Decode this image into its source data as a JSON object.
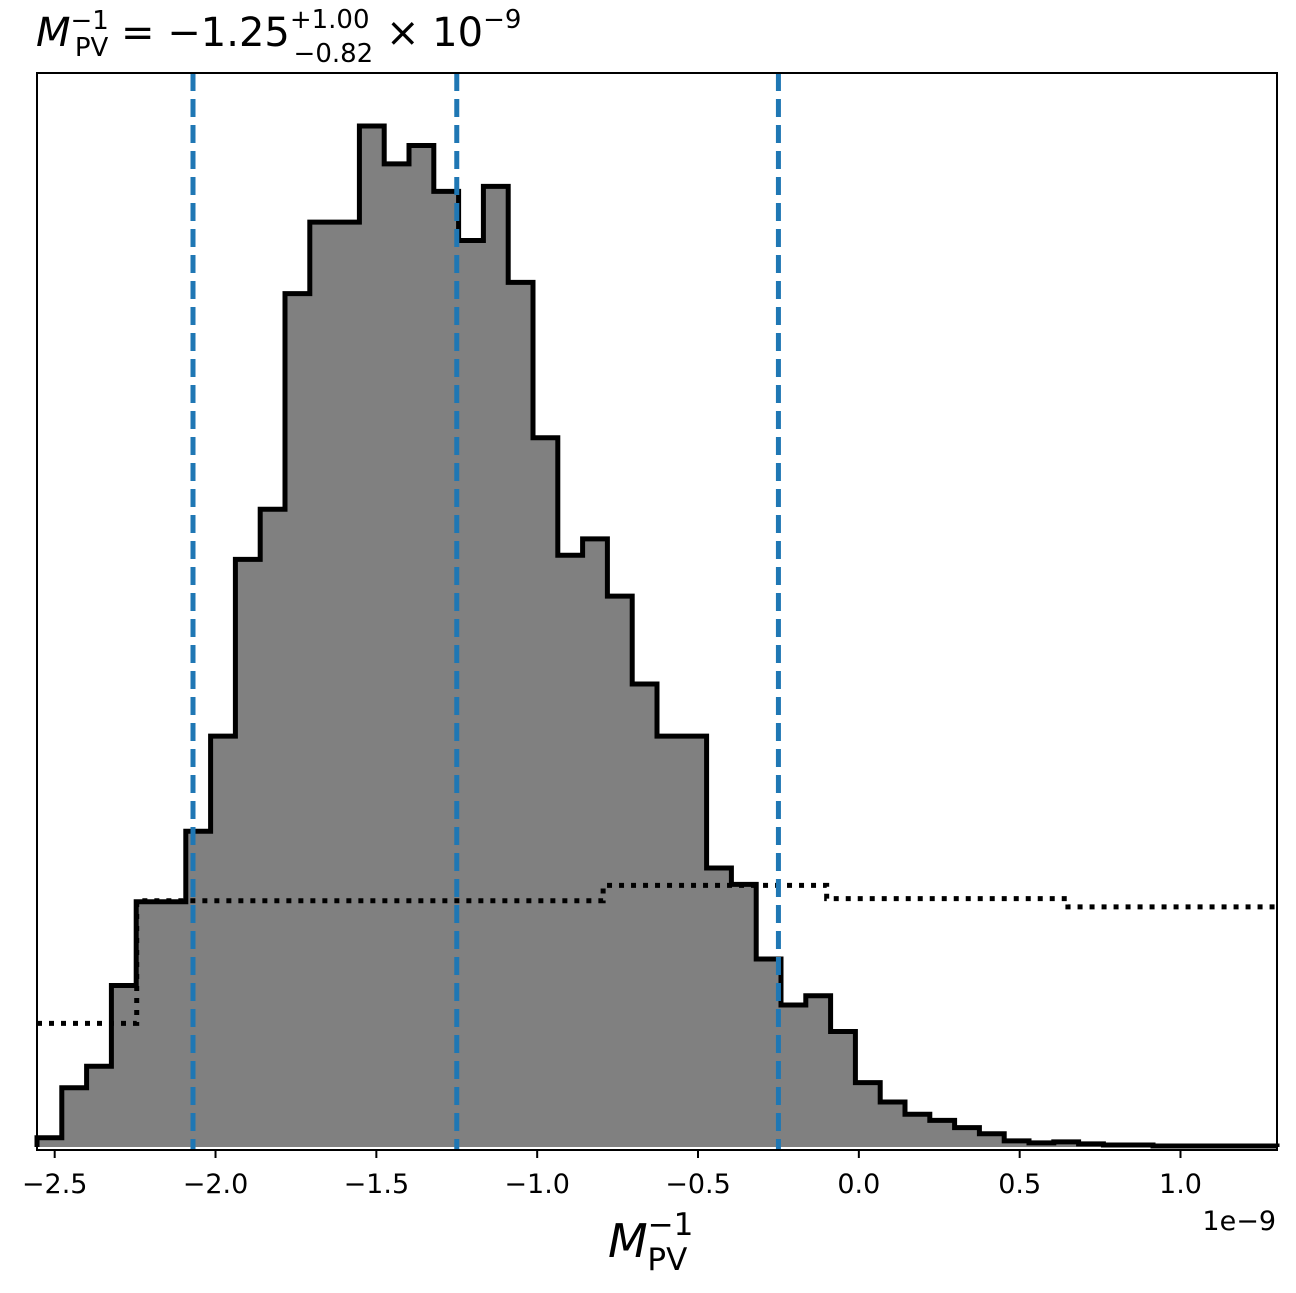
{
  "chart_data": {
    "type": "histogram",
    "title": {
      "var_base": "M",
      "var_sub": "PV",
      "var_sup": "−1",
      "equals": "=",
      "median": "−1.25",
      "err_plus": "+1.00",
      "err_minus": "−0.82",
      "times": "×",
      "power_base": "10",
      "power_exp": "−9"
    },
    "xlabel": {
      "base": "M",
      "sub": "PV",
      "sup": "−1"
    },
    "x_offset_text": "1e−9",
    "xlim": [
      -2.555,
      1.3
    ],
    "ylim": [
      0,
      1
    ],
    "y_axis_ticks": "none",
    "xticks": [
      -2.5,
      -2.0,
      -1.5,
      -1.0,
      -0.5,
      0.0,
      0.5,
      1.0
    ],
    "xtick_labels": [
      "−2.5",
      "−2.0",
      "−1.5",
      "−1.0",
      "−0.5",
      "0.0",
      "0.5",
      "1.0"
    ],
    "histogram": {
      "fill_color": "#808080",
      "edge_color": "#000000",
      "bin_start": -2.555,
      "bin_width": 0.0771,
      "counts": [
        0.009,
        0.058,
        0.079,
        0.158,
        0.24,
        0.24,
        0.309,
        0.402,
        0.575,
        0.624,
        0.835,
        0.905,
        0.905,
        0.999,
        0.962,
        0.98,
        0.935,
        0.887,
        0.94,
        0.846,
        0.694,
        0.579,
        0.595,
        0.539,
        0.453,
        0.402,
        0.402,
        0.273,
        0.257,
        0.184,
        0.139,
        0.148,
        0.113,
        0.063,
        0.044,
        0.032,
        0.026,
        0.019,
        0.013,
        0.006,
        0.004,
        0.005,
        0.003,
        0.002,
        0.002,
        0.001,
        0.001,
        0.001,
        0.001,
        0.001
      ]
    },
    "prior": {
      "style": "dotted",
      "color": "#000000",
      "steps": [
        {
          "x0": -2.555,
          "x1": -2.245,
          "y": 0.121
        },
        {
          "x0": -2.245,
          "x1": -0.795,
          "y": 0.241
        },
        {
          "x0": -0.795,
          "x1": -0.1,
          "y": 0.256
        },
        {
          "x0": -0.1,
          "x1": 0.65,
          "y": 0.243
        },
        {
          "x0": 0.65,
          "x1": 1.3,
          "y": 0.235
        }
      ]
    },
    "quantile_lines": {
      "style": "dashed",
      "color": "#1f77b4",
      "values": [
        -2.07,
        -1.25,
        -0.25
      ]
    }
  }
}
